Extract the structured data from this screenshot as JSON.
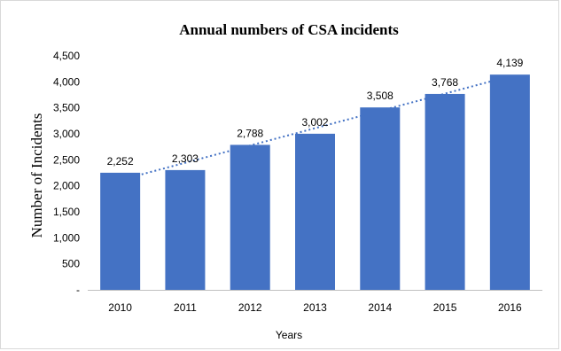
{
  "chart_data": {
    "type": "bar",
    "title": "Annual numbers of CSA incidents",
    "xlabel": "Years",
    "ylabel": "Number of Incidents",
    "categories": [
      "2010",
      "2011",
      "2012",
      "2013",
      "2014",
      "2015",
      "2016"
    ],
    "values": [
      2252,
      2303,
      2788,
      3002,
      3508,
      3768,
      4139
    ],
    "data_labels": [
      "2,252",
      "2,303",
      "2,788",
      "3,002",
      "3,508",
      "3,768",
      "4,139"
    ],
    "ylim": [
      0,
      4500
    ],
    "y_ticks": [
      0,
      500,
      1000,
      1500,
      2000,
      2500,
      3000,
      3500,
      4000,
      4500
    ],
    "y_tick_labels": [
      "-",
      "500",
      "1,000",
      "1,500",
      "2,000",
      "2,500",
      "3,000",
      "3,500",
      "4,000",
      "4,500"
    ],
    "bar_color": "#4472c4",
    "trendline": {
      "type": "linear",
      "style": "dotted",
      "color": "#4472c4"
    },
    "grid": false,
    "legend": "none"
  }
}
